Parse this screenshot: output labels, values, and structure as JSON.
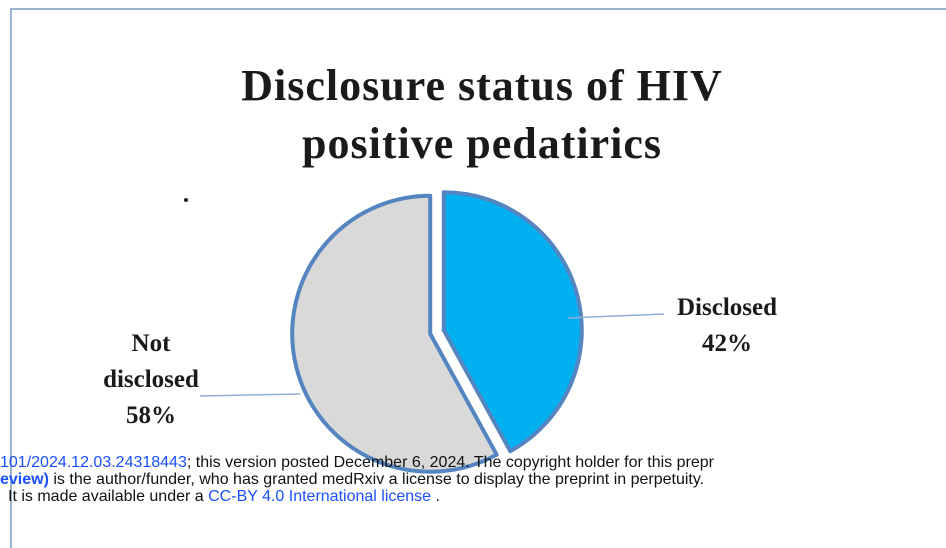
{
  "chart_data": {
    "type": "pie",
    "title": [
      "Disclosure status of HIV",
      "positive pedatirics"
    ],
    "categories": [
      "Disclosed",
      "Not disclosed"
    ],
    "values": [
      42,
      58
    ],
    "value_labels": [
      "42%",
      "58%"
    ],
    "colors": [
      "#00b0f0",
      "#d9d9d9"
    ]
  },
  "footer": {
    "line1": {
      "link": "101/2024.12.03.24318443",
      "text": "; this version posted December 6, 2024. The copyright holder for this prepr"
    },
    "line2": {
      "link": "eview)",
      "text": " is the author/funder, who has granted medRxiv a license to display the preprint in perpetuity."
    },
    "line3": {
      "text": "It is made available under a ",
      "link": "CC-BY 4.0 International license",
      "end": " ."
    }
  }
}
